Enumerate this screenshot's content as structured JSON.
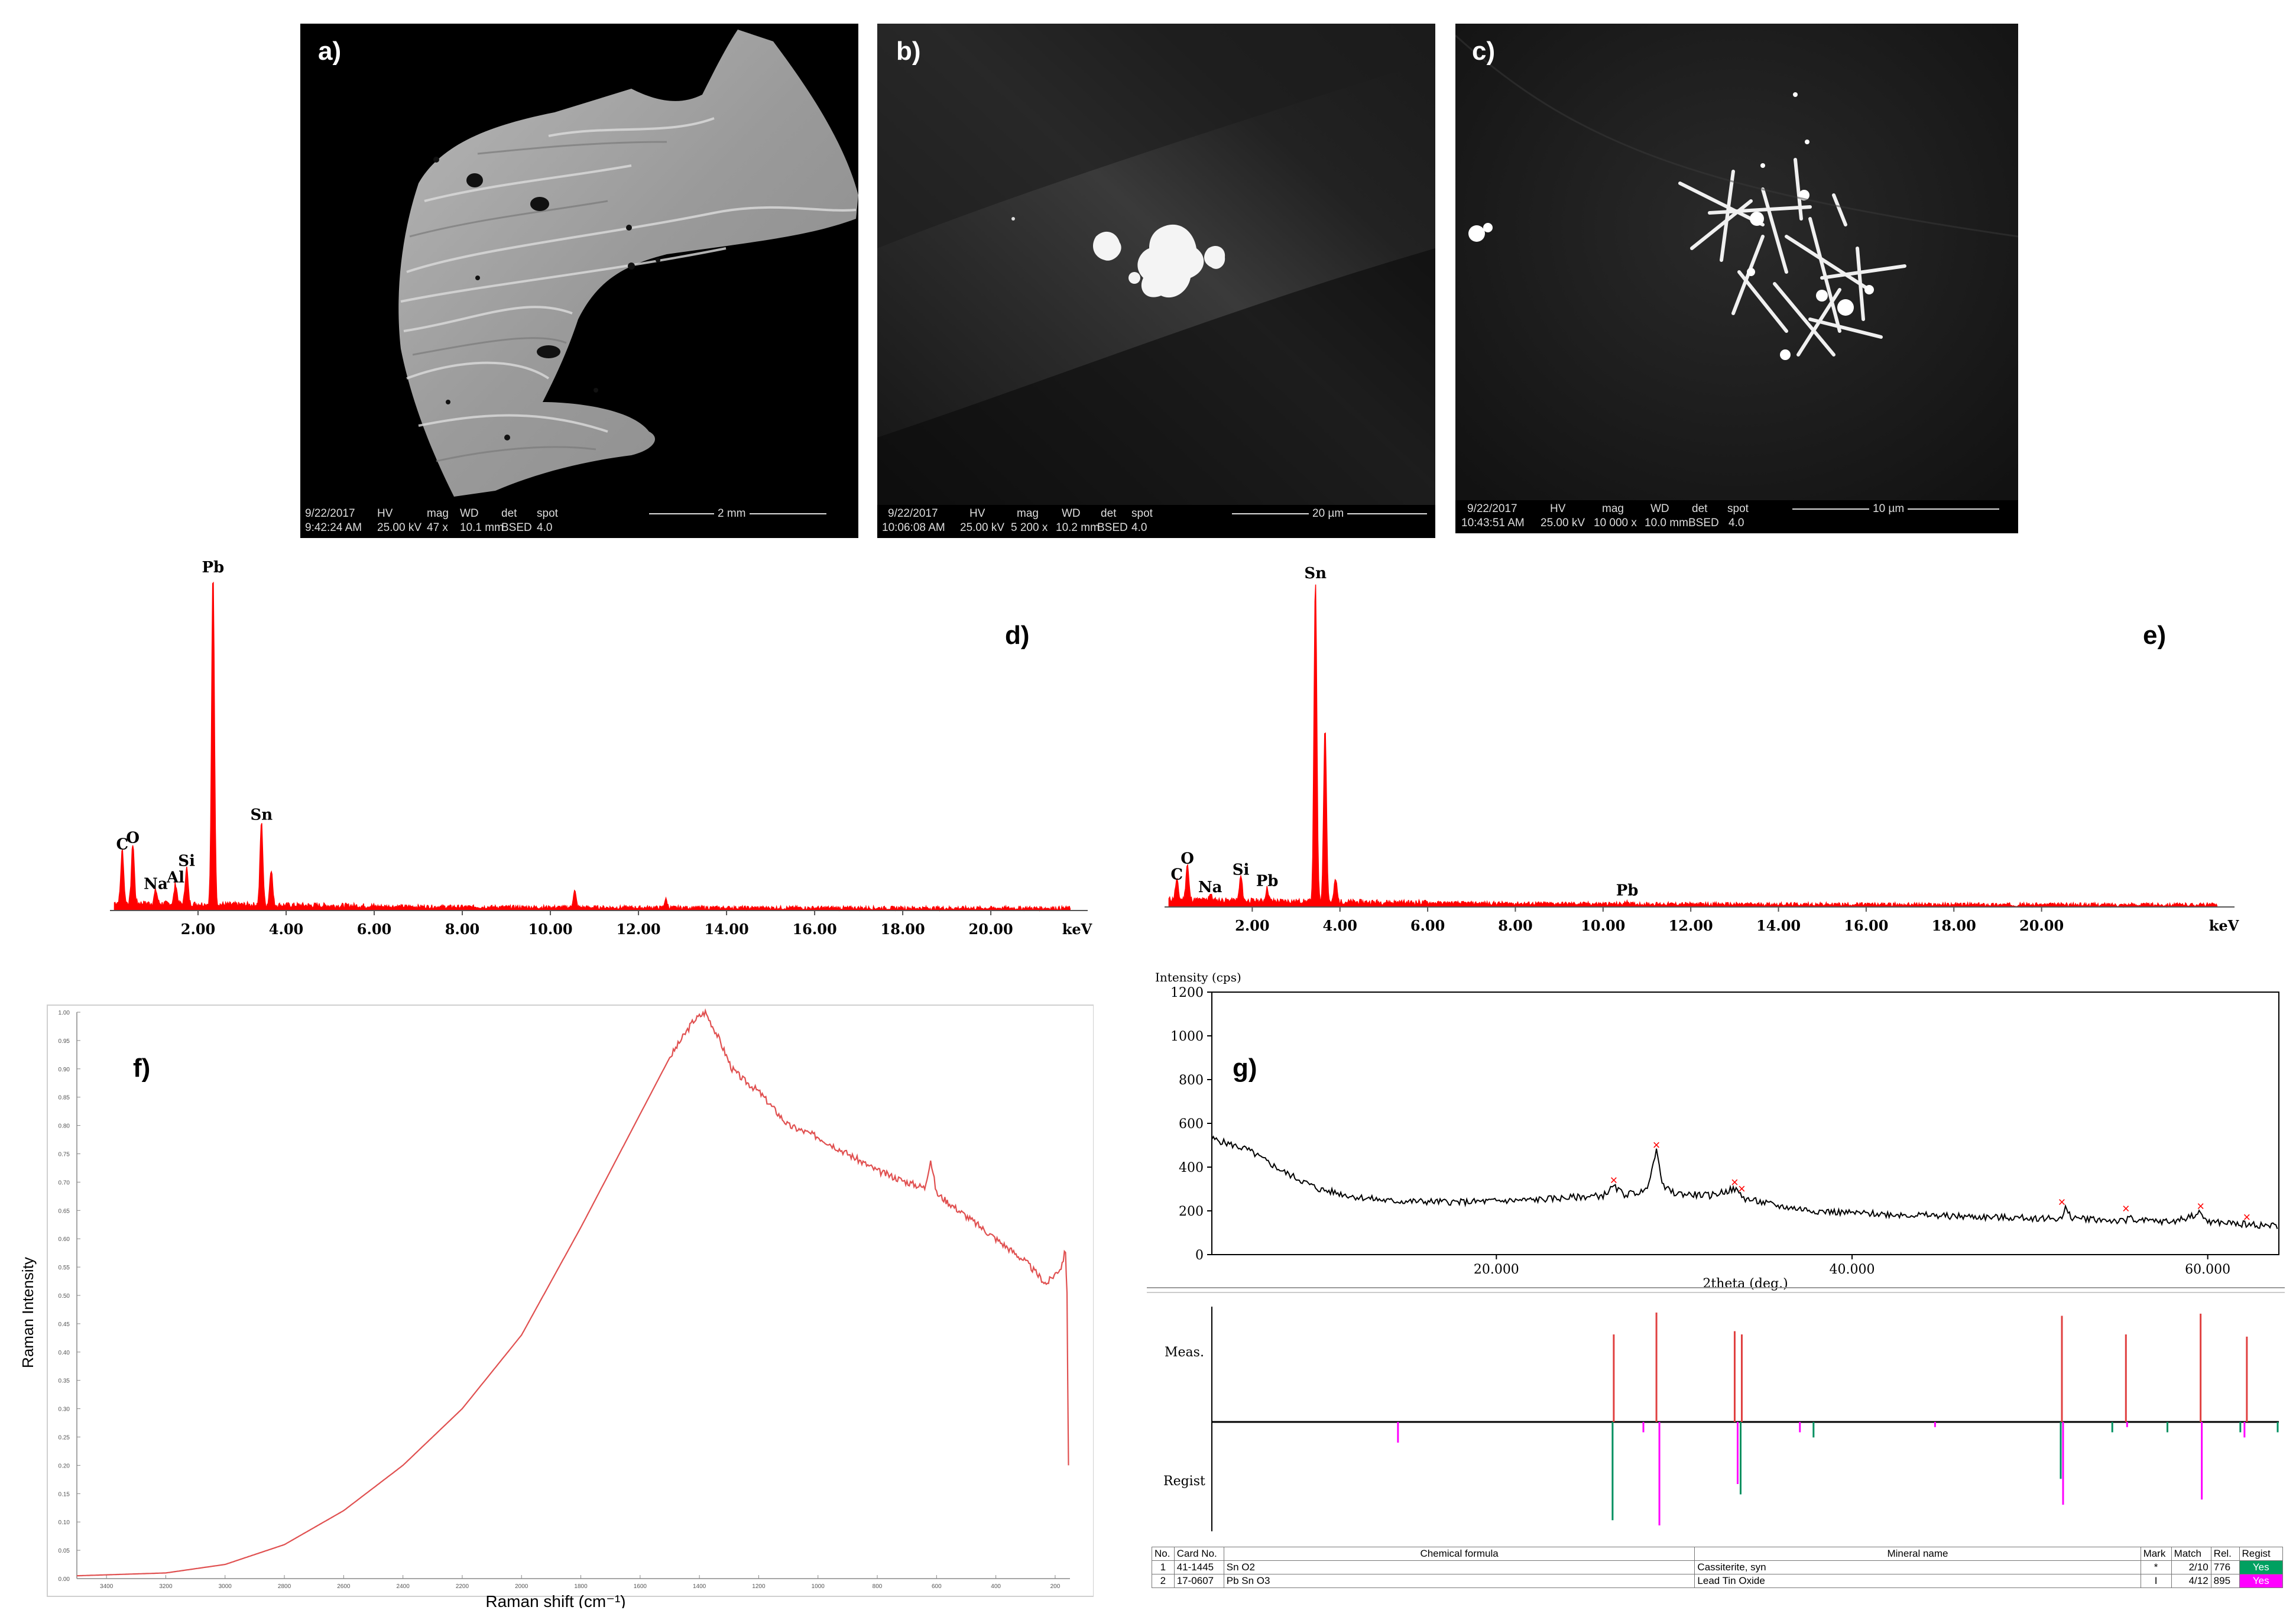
{
  "panels": {
    "a": {
      "label": "a)",
      "bar": {
        "date": "9/22/2017",
        "time": "9:42:24 AM",
        "hv_h": "HV",
        "hv": "25.00 kV",
        "mag_h": "mag",
        "mag": "47 x",
        "wd_h": "WD",
        "wd": "10.1 mm",
        "det_h": "det",
        "det": "BSED",
        "spot_h": "spot",
        "spot": "4.0",
        "scale": "2 mm"
      }
    },
    "b": {
      "label": "b)",
      "bar": {
        "date": "9/22/2017",
        "time": "10:06:08 AM",
        "hv_h": "HV",
        "hv": "25.00 kV",
        "mag_h": "mag",
        "mag": "5 200 x",
        "wd_h": "WD",
        "wd": "10.2 mm",
        "det_h": "det",
        "det": "BSED",
        "spot_h": "spot",
        "spot": "4.0",
        "scale": "20 µm"
      }
    },
    "c": {
      "label": "c)",
      "bar": {
        "date": "9/22/2017",
        "time": "10:43:51 AM",
        "hv_h": "HV",
        "hv": "25.00 kV",
        "mag_h": "mag",
        "mag": "10 000 x",
        "wd_h": "WD",
        "wd": "10.0 mm",
        "det_h": "det",
        "det": "BSED",
        "spot_h": "spot",
        "spot": "4.0",
        "scale": "10 µm"
      }
    },
    "d": {
      "label": "d)"
    },
    "e": {
      "label": "e)"
    },
    "f": {
      "label": "f)"
    },
    "g": {
      "label": "g)"
    }
  },
  "chart_data": [
    {
      "id": "d",
      "type": "line",
      "color": "#ff0000",
      "xlabel": "keV",
      "xlim": [
        0,
        22.2
      ],
      "ticks": [
        "2.00",
        "4.00",
        "6.00",
        "8.00",
        "10.00",
        "12.00",
        "14.00",
        "16.00",
        "18.00",
        "20.00"
      ],
      "tick_values": [
        2,
        4,
        6,
        8,
        10,
        12,
        14,
        16,
        18,
        20
      ],
      "peaks": [
        {
          "element": "C",
          "x": 0.28,
          "y": 0.16
        },
        {
          "element": "O",
          "x": 0.52,
          "y": 0.18
        },
        {
          "element": "Na",
          "x": 1.04,
          "y": 0.04
        },
        {
          "element": "Al",
          "x": 1.49,
          "y": 0.06
        },
        {
          "element": "Si",
          "x": 1.74,
          "y": 0.11
        },
        {
          "element": "Pb",
          "x": 2.34,
          "y": 1.0
        },
        {
          "element": "Sn",
          "x": 3.44,
          "y": 0.25
        },
        {
          "element": "",
          "x": 3.66,
          "y": 0.11
        },
        {
          "element": "",
          "x": 10.55,
          "y": 0.05
        },
        {
          "element": "",
          "x": 12.62,
          "y": 0.025
        }
      ]
    },
    {
      "id": "e",
      "type": "line",
      "color": "#ff0000",
      "xlabel": "keV",
      "xlim": [
        0,
        24.4
      ],
      "ticks": [
        "2.00",
        "4.00",
        "6.00",
        "8.00",
        "10.00",
        "12.00",
        "14.00",
        "16.00",
        "18.00",
        "20.00"
      ],
      "tick_values": [
        2,
        4,
        6,
        8,
        10,
        12,
        14,
        16,
        18,
        20
      ],
      "peaks": [
        {
          "element": "C",
          "x": 0.28,
          "y": 0.06
        },
        {
          "element": "O",
          "x": 0.52,
          "y": 0.11
        },
        {
          "element": "Na",
          "x": 1.04,
          "y": 0.02
        },
        {
          "element": "Si",
          "x": 1.74,
          "y": 0.075
        },
        {
          "element": "Pb",
          "x": 2.34,
          "y": 0.04
        },
        {
          "element": "Sn",
          "x": 3.44,
          "y": 1.0
        },
        {
          "element": "",
          "x": 3.66,
          "y": 0.55
        },
        {
          "element": "",
          "x": 3.9,
          "y": 0.07
        },
        {
          "element": "Pb",
          "x": 10.55,
          "y": 0.01
        }
      ]
    },
    {
      "id": "f",
      "type": "line",
      "color": "#e05050",
      "xlabel": "Raman shift (cm⁻¹)",
      "ylabel": "Raman Intensity",
      "xlim": [
        3500,
        150
      ],
      "ylim": [
        0,
        1.0
      ],
      "xticks": [
        "3400",
        "3200",
        "3000",
        "2800",
        "2600",
        "2400",
        "2200",
        "2000",
        "1800",
        "1600",
        "1400",
        "1200",
        "1000",
        "800",
        "600",
        "400",
        "200"
      ],
      "xtick_values": [
        3400,
        3200,
        3000,
        2800,
        2600,
        2400,
        2200,
        2000,
        1800,
        1600,
        1400,
        1200,
        1000,
        800,
        600,
        400,
        200
      ],
      "yticks": [
        "1.00",
        "0.95",
        "0.90",
        "0.85",
        "0.80",
        "0.75",
        "0.70",
        "0.65",
        "0.60",
        "0.55",
        "0.50",
        "0.45",
        "0.40",
        "0.35",
        "0.30",
        "0.25",
        "0.20",
        "0.15",
        "0.10",
        "0.05",
        "0.00"
      ],
      "ytick_values": [
        1.0,
        0.95,
        0.9,
        0.85,
        0.8,
        0.75,
        0.7,
        0.65,
        0.6,
        0.55,
        0.5,
        0.45,
        0.4,
        0.35,
        0.3,
        0.25,
        0.2,
        0.15,
        0.1,
        0.05,
        0.0
      ],
      "points": [
        [
          3500,
          0.005
        ],
        [
          3200,
          0.01
        ],
        [
          3000,
          0.025
        ],
        [
          2800,
          0.06
        ],
        [
          2600,
          0.12
        ],
        [
          2400,
          0.2
        ],
        [
          2200,
          0.3
        ],
        [
          2000,
          0.43
        ],
        [
          1800,
          0.62
        ],
        [
          1600,
          0.82
        ],
        [
          1500,
          0.92
        ],
        [
          1420,
          0.985
        ],
        [
          1380,
          1.0
        ],
        [
          1340,
          0.96
        ],
        [
          1290,
          0.9
        ],
        [
          1250,
          0.88
        ],
        [
          1200,
          0.86
        ],
        [
          1100,
          0.8
        ],
        [
          1000,
          0.78
        ],
        [
          900,
          0.75
        ],
        [
          800,
          0.72
        ],
        [
          700,
          0.7
        ],
        [
          640,
          0.69
        ],
        [
          620,
          0.74
        ],
        [
          600,
          0.68
        ],
        [
          500,
          0.64
        ],
        [
          400,
          0.6
        ],
        [
          300,
          0.56
        ],
        [
          230,
          0.52
        ],
        [
          180,
          0.55
        ],
        [
          165,
          0.58
        ],
        [
          160,
          0.5
        ],
        [
          155,
          0.2
        ]
      ]
    },
    {
      "id": "g",
      "type": "line",
      "color": "#000000",
      "ylabel": "Intensity (cps)",
      "xlabel": "2theta (deg.)",
      "xlim": [
        4,
        64
      ],
      "ylim": [
        0,
        1200
      ],
      "xticks": [
        "20.000",
        "40.000",
        "60.000"
      ],
      "xtick_values": [
        20,
        40,
        60
      ],
      "yticks": [
        "1200",
        "1000",
        "800",
        "600",
        "400",
        "200",
        "0"
      ],
      "ytick_values": [
        1200,
        1000,
        800,
        600,
        400,
        200,
        0
      ],
      "points": [
        [
          4,
          530
        ],
        [
          6,
          480
        ],
        [
          8,
          380
        ],
        [
          10,
          300
        ],
        [
          12,
          265
        ],
        [
          14,
          245
        ],
        [
          18,
          240
        ],
        [
          22,
          250
        ],
        [
          24,
          260
        ],
        [
          26,
          270
        ],
        [
          26.6,
          310
        ],
        [
          27.2,
          275
        ],
        [
          28.4,
          290
        ],
        [
          29,
          470
        ],
        [
          29.4,
          310
        ],
        [
          30,
          280
        ],
        [
          32,
          270
        ],
        [
          33.4,
          300
        ],
        [
          33.8,
          270
        ],
        [
          34,
          255
        ],
        [
          36,
          220
        ],
        [
          38,
          200
        ],
        [
          40,
          190
        ],
        [
          44,
          180
        ],
        [
          48,
          170
        ],
        [
          51.8,
          165
        ],
        [
          52,
          210
        ],
        [
          52.3,
          170
        ],
        [
          54,
          160
        ],
        [
          55.4,
          150
        ],
        [
          55.6,
          180
        ],
        [
          56,
          155
        ],
        [
          58,
          150
        ],
        [
          59.6,
          190
        ],
        [
          60,
          150
        ],
        [
          62,
          140
        ],
        [
          64,
          130
        ]
      ],
      "markers": [
        26.6,
        29,
        33.4,
        33.8,
        51.8,
        55.4,
        59.6,
        62.2
      ],
      "stick": {
        "meas_label": "Meas.",
        "regist_label": "Regist",
        "meas": [
          {
            "x": 26.6,
            "h": 0.8
          },
          {
            "x": 29,
            "h": 1.0
          },
          {
            "x": 33.4,
            "h": 0.83
          },
          {
            "x": 33.8,
            "h": 0.8
          },
          {
            "x": 51.8,
            "h": 0.97
          },
          {
            "x": 55.4,
            "h": 0.8
          },
          {
            "x": 59.6,
            "h": 0.99
          },
          {
            "x": 62.2,
            "h": 0.78
          }
        ],
        "regist_sn": [
          {
            "x": 26.6,
            "h": 0.95
          },
          {
            "x": 33.8,
            "h": 0.7
          },
          {
            "x": 37.9,
            "h": 0.15
          },
          {
            "x": 51.8,
            "h": 0.55
          },
          {
            "x": 54.7,
            "h": 0.1
          },
          {
            "x": 57.8,
            "h": 0.1
          },
          {
            "x": 61.9,
            "h": 0.1
          },
          {
            "x": 64.7,
            "h": 0.1
          }
        ],
        "regist_pbsn": [
          {
            "x": 14.4,
            "h": 0.2
          },
          {
            "x": 28.2,
            "h": 0.1
          },
          {
            "x": 29.1,
            "h": 1.0
          },
          {
            "x": 33.5,
            "h": 0.6
          },
          {
            "x": 37.0,
            "h": 0.1
          },
          {
            "x": 44.6,
            "h": 0.05
          },
          {
            "x": 51.8,
            "h": 0.8
          },
          {
            "x": 55.4,
            "h": 0.05
          },
          {
            "x": 59.6,
            "h": 0.75
          },
          {
            "x": 62.0,
            "h": 0.15
          }
        ],
        "color_meas": "#e04040",
        "color_sn": "#009060",
        "color_pbsn": "#ff00ff"
      },
      "table": {
        "headers": [
          "No.",
          "Card No.",
          "Chemical formula",
          "Mineral name",
          "Mark",
          "Match",
          "Rel.",
          "Regist"
        ],
        "rows": [
          [
            "1",
            "41-1445",
            "Sn O2",
            "Cassiterite, syn",
            "*",
            "2/10",
            "776",
            "Yes"
          ],
          [
            "2",
            "17-0607",
            "Pb Sn O3",
            "Lead Tin Oxide",
            "I",
            "4/12",
            "895",
            "Yes"
          ]
        ],
        "regist_colors": [
          "#00a060",
          "#ff00ff"
        ]
      }
    }
  ]
}
